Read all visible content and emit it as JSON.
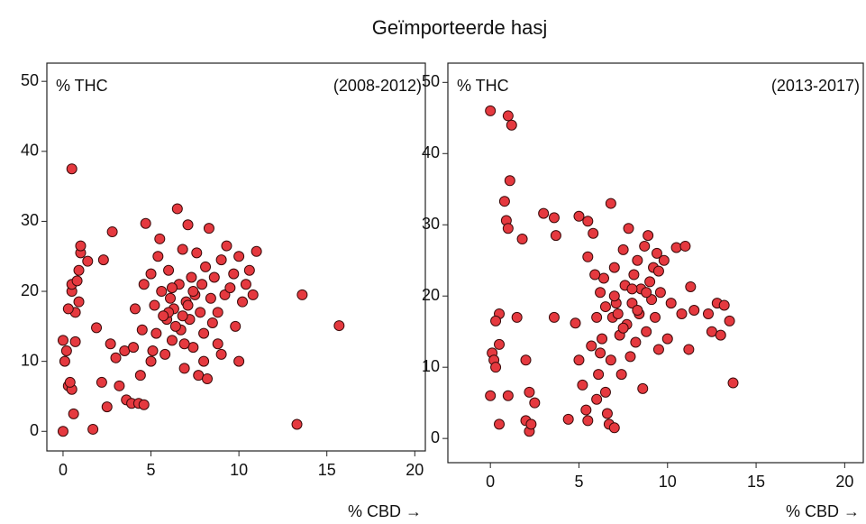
{
  "title": "Geïmporteerde hasj",
  "chart_data": [
    {
      "type": "scatter",
      "y_label": "% THC",
      "period": "(2008-2012)",
      "x_label": "% CBD →",
      "color": "#e5393f",
      "xlim": [
        -0.92,
        20.6
      ],
      "ylim": [
        -2.8,
        52.6
      ],
      "xticks": [
        0,
        5,
        10,
        15,
        20
      ],
      "yticks": [
        0,
        10,
        20,
        30,
        40,
        50
      ],
      "x": [
        0.5,
        0,
        0,
        0.2,
        0.1,
        0.3,
        0.5,
        0.6,
        0.4,
        0.7,
        0.7,
        0.3,
        0.5,
        0.5,
        0.8,
        0.9,
        1,
        1,
        0.9,
        1.4,
        1.7,
        1.9,
        2.3,
        2.2,
        2.5,
        2.8,
        2.7,
        3,
        3.2,
        3.5,
        3.6,
        3.9,
        4,
        4.1,
        4.3,
        4.4,
        4.6,
        4.5,
        4.6,
        4.7,
        5,
        5,
        5.2,
        5.3,
        5.4,
        5.5,
        5.6,
        5.8,
        5.9,
        6,
        6.1,
        6.2,
        6.3,
        6.5,
        6.6,
        6.7,
        6.8,
        6.9,
        7,
        7.1,
        7.2,
        7.3,
        7.4,
        7.5,
        7.6,
        7.7,
        7.8,
        7.9,
        8,
        8.1,
        8.2,
        8.3,
        8.4,
        8.5,
        8.6,
        8.8,
        9,
        9.2,
        9.3,
        9.5,
        9.7,
        9.8,
        10,
        10,
        10.2,
        10.4,
        10.6,
        10.8,
        11,
        13.3,
        13.6,
        15.7,
        6,
        6.4,
        6.8,
        7.1,
        5.7,
        6.2,
        7.4,
        8.8,
        5.1,
        6.9,
        8,
        9
      ],
      "values": [
        37.5,
        0,
        13,
        11.5,
        10,
        6.5,
        6,
        2.5,
        7,
        12.8,
        17,
        17.5,
        20,
        21,
        21.5,
        18.5,
        25.5,
        26.5,
        23,
        24.3,
        0.3,
        14.8,
        24.5,
        7,
        3.5,
        28.5,
        12.5,
        10.5,
        6.5,
        11.5,
        4.5,
        4,
        12,
        17.5,
        4,
        8,
        3.8,
        14.5,
        21,
        29.7,
        10,
        22.5,
        18,
        14,
        25,
        27.5,
        20,
        11,
        16,
        23,
        19,
        13,
        17.5,
        31.8,
        21,
        14.5,
        26,
        9,
        18.5,
        29.5,
        16,
        22,
        12,
        19.5,
        25.5,
        8,
        17,
        21,
        14,
        23.5,
        7.5,
        29,
        19,
        15.5,
        22,
        12.5,
        24.5,
        19.5,
        26.5,
        20.5,
        22.5,
        15,
        10,
        25,
        18.5,
        21,
        23,
        19.5,
        25.7,
        1,
        19.5,
        15.1,
        17,
        15,
        16.5,
        18,
        16.5,
        20.5,
        20,
        17,
        11.5,
        12.5,
        10,
        11
      ]
    },
    {
      "type": "scatter",
      "y_label": "% THC",
      "period": "(2013-2017)",
      "x_label": "% CBD →",
      "color": "#e5393f",
      "xlim": [
        -2.4,
        21.05
      ],
      "ylim": [
        -3.4,
        52.7
      ],
      "xticks": [
        0,
        5,
        10,
        15,
        20
      ],
      "yticks": [
        0,
        10,
        20,
        30,
        40,
        50
      ],
      "x": [
        0,
        1,
        1.2,
        1.1,
        0.8,
        0.9,
        1,
        1.8,
        3,
        3.6,
        3.7,
        5,
        5.5,
        6.8,
        5.8,
        0.5,
        0.3,
        1.5,
        0.1,
        0.2,
        0.3,
        0.5,
        0,
        1,
        0.5,
        2,
        2.2,
        2.5,
        2,
        2.2,
        2.3,
        3.6,
        4.4,
        4.8,
        5,
        5.2,
        5.4,
        5.5,
        5.7,
        6,
        6.1,
        6.2,
        6.3,
        6.5,
        6.6,
        6.7,
        6.8,
        6.9,
        7,
        7,
        7.1,
        7.3,
        7.4,
        7.5,
        7.6,
        7.7,
        7.8,
        7.9,
        8,
        8.1,
        8.2,
        8.3,
        8.4,
        8.5,
        8.6,
        8.7,
        8.8,
        8.9,
        9,
        9.1,
        9.2,
        9.3,
        9.4,
        9.5,
        9.6,
        9.8,
        10,
        10.2,
        10.5,
        10.8,
        11,
        11.2,
        11.3,
        11.5,
        12.3,
        12.5,
        12.8,
        13,
        13.2,
        13.5,
        13.7,
        6,
        6.5,
        7,
        7.2,
        7.5,
        8,
        8.3,
        8.8,
        9.5,
        6.2,
        6.4,
        5.9,
        5.5
      ],
      "values": [
        46,
        45.3,
        44,
        36.2,
        33.3,
        30.6,
        29.5,
        28,
        31.6,
        31,
        28.5,
        31.2,
        30.5,
        33,
        28.8,
        17.5,
        16.5,
        17,
        12,
        11,
        10,
        13.2,
        6,
        6,
        2,
        11,
        6.5,
        5,
        2.5,
        1,
        2,
        17,
        2.7,
        16.2,
        11,
        7.5,
        4,
        2.5,
        13,
        5.5,
        9,
        20.5,
        14,
        6.5,
        3.5,
        2,
        11,
        17,
        1.5,
        24,
        19,
        14.5,
        9,
        26.5,
        21.5,
        16,
        29.5,
        11.5,
        19,
        23,
        13.5,
        25,
        17.5,
        21,
        7,
        27,
        15,
        28.5,
        22,
        19.5,
        24,
        17,
        26,
        12.5,
        20.5,
        25,
        14,
        19,
        26.8,
        17.5,
        27,
        12.5,
        21.3,
        18,
        17.5,
        15,
        19,
        14.5,
        18.7,
        16.5,
        7.8,
        17,
        18.5,
        20,
        17.5,
        15.5,
        21,
        18,
        20.5,
        23.5,
        12,
        22.5,
        23,
        25.5
      ]
    }
  ]
}
